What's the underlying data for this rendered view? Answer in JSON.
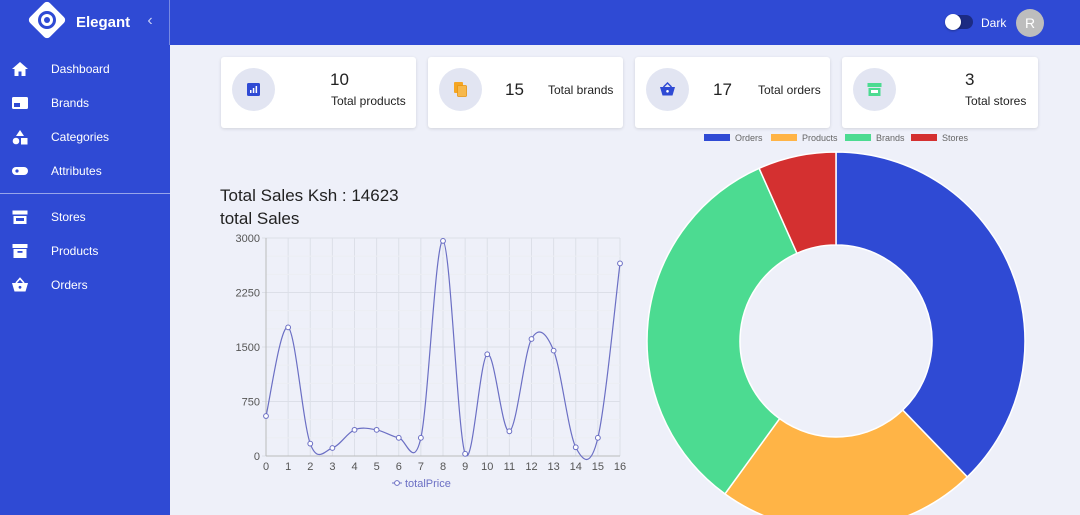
{
  "app": {
    "name": "Elegant",
    "collapse_icon": "chevron-left-icon"
  },
  "header": {
    "theme_label": "Dark",
    "avatar_initial": "R"
  },
  "sidebar": {
    "items": [
      {
        "label": "Dashboard",
        "icon": "home-icon"
      },
      {
        "label": "Brands",
        "icon": "brand-card-icon"
      },
      {
        "label": "Categories",
        "icon": "shapes-icon"
      },
      {
        "label": "Attributes",
        "icon": "tag-icon"
      },
      {
        "label": "Stores",
        "icon": "storefront-icon"
      },
      {
        "label": "Products",
        "icon": "archive-box-icon"
      },
      {
        "label": "Orders",
        "icon": "basket-icon"
      }
    ]
  },
  "stats": [
    {
      "value": "10",
      "label": "Total products",
      "icon": "chart-icon",
      "color": "#2f4ad4"
    },
    {
      "value": "15",
      "label": "Total brands",
      "icon": "copy-icon",
      "color": "#f5a623"
    },
    {
      "value": "17",
      "label": "Total orders",
      "icon": "basket-icon",
      "color": "#2f4ad4"
    },
    {
      "value": "3",
      "label": "Total stores",
      "icon": "storefront-icon",
      "color": "#4cdb91"
    }
  ],
  "sales": {
    "heading": "Total Sales Ksh : 14623",
    "subheading": "total Sales"
  },
  "colors": {
    "accent": "#2f4ad4",
    "background": "#eef0f9",
    "line": "#6b6fc4"
  },
  "chart_data": [
    {
      "type": "line",
      "x": [
        0,
        1,
        2,
        3,
        4,
        5,
        6,
        7,
        8,
        9,
        10,
        11,
        12,
        13,
        14,
        15,
        16
      ],
      "series": [
        {
          "name": "totalPrice",
          "values": [
            550,
            1770,
            170,
            110,
            360,
            360,
            250,
            250,
            2960,
            30,
            1400,
            340,
            1610,
            1450,
            120,
            250,
            2650
          ]
        }
      ],
      "ylim": [
        0,
        3000
      ],
      "yticks": [
        0,
        750,
        1500,
        2250,
        3000
      ],
      "grid": true,
      "legend": "bottom"
    },
    {
      "type": "pie",
      "donut": true,
      "labels": [
        "Orders",
        "Products",
        "Brands",
        "Stores"
      ],
      "values": [
        17,
        10,
        15,
        3
      ],
      "colors": [
        "#2f4ad4",
        "#ffb446",
        "#4cdb91",
        "#d43030"
      ],
      "legend": "top"
    }
  ]
}
